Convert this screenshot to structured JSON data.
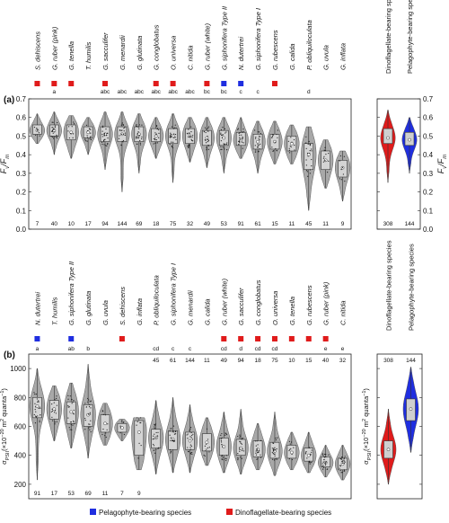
{
  "colors": {
    "pelagophyte": "#1f2ee0",
    "dinoflagellate": "#e01b1b",
    "violin": "#a8a8a8",
    "box": "#bdbdbd"
  },
  "legend": {
    "items": [
      {
        "label": "Pelagophyte-bearing species",
        "color": "#1f2ee0"
      },
      {
        "label": "Dinoflagellate-bearing species",
        "color": "#e01b1b"
      }
    ]
  },
  "chart_data": [
    {
      "type": "violin",
      "panel_label": "(a)",
      "ylabel": "Fv/Fm",
      "ylabel_main": "F",
      "ylabel_sub1": "v",
      "ylabel_slash": "/",
      "ylabel_sub2": "m",
      "ylim": [
        0.0,
        0.7
      ],
      "yticks": [
        "0.0",
        "0.1",
        "0.2",
        "0.3",
        "0.4",
        "0.5",
        "0.6",
        "0.7"
      ],
      "species": [
        {
          "name": "S. dehiscens",
          "symbiont": "dinoflagellate",
          "letter": "",
          "n": "7",
          "median": 0.53,
          "q1": 0.51,
          "q3": 0.56,
          "min": 0.46,
          "max": 0.62
        },
        {
          "name": "G. ruber (pink)",
          "symbiont": "dinoflagellate",
          "letter": "a",
          "n": "40",
          "median": 0.53,
          "q1": 0.5,
          "q3": 0.56,
          "min": 0.4,
          "max": 0.63
        },
        {
          "name": "G. tenella",
          "symbiont": "dinoflagellate",
          "letter": "",
          "n": "10",
          "median": 0.52,
          "q1": 0.48,
          "q3": 0.56,
          "min": 0.38,
          "max": 0.61
        },
        {
          "name": "T. humilis",
          "symbiont": "none",
          "letter": "",
          "n": "17",
          "median": 0.52,
          "q1": 0.49,
          "q3": 0.55,
          "min": 0.4,
          "max": 0.6
        },
        {
          "name": "G. sacculifer",
          "symbiont": "dinoflagellate",
          "letter": "abc",
          "n": "94",
          "median": 0.51,
          "q1": 0.47,
          "q3": 0.55,
          "min": 0.32,
          "max": 0.63
        },
        {
          "name": "G. menardii",
          "symbiont": "none",
          "letter": "abc",
          "n": "144",
          "median": 0.51,
          "q1": 0.47,
          "q3": 0.55,
          "min": 0.2,
          "max": 0.63
        },
        {
          "name": "G. glutinata",
          "symbiont": "none",
          "letter": "abc",
          "n": "69",
          "median": 0.51,
          "q1": 0.47,
          "q3": 0.55,
          "min": 0.3,
          "max": 0.62
        },
        {
          "name": "G. conglobatus",
          "symbiont": "dinoflagellate",
          "letter": "abc",
          "n": "18",
          "median": 0.5,
          "q1": 0.47,
          "q3": 0.54,
          "min": 0.38,
          "max": 0.6
        },
        {
          "name": "O. universa",
          "symbiont": "dinoflagellate",
          "letter": "abc",
          "n": "75",
          "median": 0.5,
          "q1": 0.46,
          "q3": 0.54,
          "min": 0.25,
          "max": 0.62
        },
        {
          "name": "C. nitida",
          "symbiont": "none",
          "letter": "abc",
          "n": "32",
          "median": 0.5,
          "q1": 0.46,
          "q3": 0.54,
          "min": 0.36,
          "max": 0.6
        },
        {
          "name": "G. ruber (white)",
          "symbiont": "dinoflagellate",
          "letter": "bc",
          "n": "49",
          "median": 0.49,
          "q1": 0.45,
          "q3": 0.53,
          "min": 0.33,
          "max": 0.6
        },
        {
          "name": "G. siphonifera Type II",
          "symbiont": "pelagophyte",
          "letter": "bc",
          "n": "53",
          "median": 0.49,
          "q1": 0.45,
          "q3": 0.53,
          "min": 0.3,
          "max": 0.6
        },
        {
          "name": "N. dutertrei",
          "symbiont": "pelagophyte",
          "letter": "c",
          "n": "91",
          "median": 0.48,
          "q1": 0.45,
          "q3": 0.52,
          "min": 0.38,
          "max": 0.6
        },
        {
          "name": "G. siphonifera Type I",
          "symbiont": "none",
          "letter": "c",
          "n": "61",
          "median": 0.47,
          "q1": 0.43,
          "q3": 0.51,
          "min": 0.3,
          "max": 0.58
        },
        {
          "name": "G. rubescens",
          "symbiont": "dinoflagellate",
          "letter": "",
          "n": "15",
          "median": 0.47,
          "q1": 0.43,
          "q3": 0.51,
          "min": 0.35,
          "max": 0.58
        },
        {
          "name": "G. calida",
          "symbiont": "none",
          "letter": "",
          "n": "11",
          "median": 0.46,
          "q1": 0.42,
          "q3": 0.5,
          "min": 0.35,
          "max": 0.56
        },
        {
          "name": "P. obliquiloculata",
          "symbiont": "none",
          "letter": "d",
          "n": "45",
          "median": 0.4,
          "q1": 0.32,
          "q3": 0.46,
          "min": 0.1,
          "max": 0.55
        },
        {
          "name": "G. uvula",
          "symbiont": "none",
          "letter": "",
          "n": "11",
          "median": 0.37,
          "q1": 0.32,
          "q3": 0.42,
          "min": 0.22,
          "max": 0.48
        },
        {
          "name": "G. inflata",
          "symbiont": "none",
          "letter": "",
          "n": "9",
          "median": 0.33,
          "q1": 0.28,
          "q3": 0.37,
          "min": 0.15,
          "max": 0.42
        }
      ],
      "groups": [
        {
          "name": "Dinoflagellate-bearing species",
          "color": "#e01b1b",
          "n": "308",
          "median": 0.49,
          "q1": 0.46,
          "q3": 0.54,
          "min": 0.25,
          "max": 0.64
        },
        {
          "name": "Pelagophyte-bearing species",
          "color": "#1f2ee0",
          "n": "144",
          "median": 0.48,
          "q1": 0.45,
          "q3": 0.52,
          "min": 0.3,
          "max": 0.6
        }
      ]
    },
    {
      "type": "violin",
      "panel_label": "(b)",
      "ylabel": "σPSII (×10⁻²⁰ m² quanta⁻¹)",
      "ylabel_main": "σ",
      "ylabel_sub": "PSII",
      "ylabel_unit": "(×10",
      "ylabel_sup": "−20",
      "ylabel_unit2": " m",
      "ylabel_sup2": "2",
      "ylabel_unit3": " quanta",
      "ylabel_sup3": "−1",
      "ylabel_close": ")",
      "ylim": [
        100,
        1100
      ],
      "yticks": [
        "200",
        "400",
        "600",
        "800",
        "1000"
      ],
      "species": [
        {
          "name": "N. dutertrei",
          "symbiont": "pelagophyte",
          "letter": "a",
          "n": "91",
          "n_pos": "bottom",
          "median": 740,
          "q1": 660,
          "q3": 800,
          "min": 230,
          "max": 1000
        },
        {
          "name": "T. humilis",
          "symbiont": "none",
          "letter": "",
          "n": "17",
          "n_pos": "bottom",
          "median": 720,
          "q1": 650,
          "q3": 780,
          "min": 500,
          "max": 880
        },
        {
          "name": "G. siphonifera Type II",
          "symbiont": "pelagophyte",
          "letter": "ab",
          "n": "53",
          "n_pos": "bottom",
          "median": 700,
          "q1": 620,
          "q3": 770,
          "min": 450,
          "max": 900
        },
        {
          "name": "G. glutinata",
          "symbiont": "none",
          "letter": "b",
          "n": "69",
          "n_pos": "bottom",
          "median": 680,
          "q1": 600,
          "q3": 750,
          "min": 380,
          "max": 1030
        },
        {
          "name": "G. uvula",
          "symbiont": "none",
          "letter": "",
          "n": "11",
          "n_pos": "bottom",
          "median": 620,
          "q1": 560,
          "q3": 680,
          "min": 470,
          "max": 760
        },
        {
          "name": "S. dehiscens",
          "symbiont": "dinoflagellate",
          "letter": "",
          "n": "7",
          "n_pos": "bottom",
          "median": 590,
          "q1": 560,
          "q3": 620,
          "min": 500,
          "max": 650
        },
        {
          "name": "G. inflata",
          "symbiont": "none",
          "letter": "",
          "n": "9",
          "n_pos": "bottom",
          "median": 560,
          "q1": 400,
          "q3": 640,
          "min": 300,
          "max": 660
        },
        {
          "name": "P. obliquiloculata",
          "symbiont": "none",
          "letter": "cd",
          "n": "45",
          "n_pos": "top",
          "median": 520,
          "q1": 450,
          "q3": 580,
          "min": 270,
          "max": 780
        },
        {
          "name": "G. siphonifera Type I",
          "symbiont": "none",
          "letter": "c",
          "n": "61",
          "n_pos": "top",
          "median": 510,
          "q1": 440,
          "q3": 570,
          "min": 280,
          "max": 800
        },
        {
          "name": "G. menardii",
          "symbiont": "none",
          "letter": "c",
          "n": "144",
          "n_pos": "top",
          "median": 500,
          "q1": 440,
          "q3": 560,
          "min": 280,
          "max": 750
        },
        {
          "name": "G. calida",
          "symbiont": "none",
          "letter": "",
          "n": "11",
          "n_pos": "top",
          "median": 490,
          "q1": 430,
          "q3": 550,
          "min": 330,
          "max": 660
        },
        {
          "name": "G. ruber (white)",
          "symbiont": "dinoflagellate",
          "letter": "cd",
          "n": "49",
          "n_pos": "top",
          "median": 460,
          "q1": 400,
          "q3": 520,
          "min": 280,
          "max": 700
        },
        {
          "name": "G. sacculifer",
          "symbiont": "dinoflagellate",
          "letter": "d",
          "n": "94",
          "n_pos": "top",
          "median": 450,
          "q1": 400,
          "q3": 510,
          "min": 270,
          "max": 720
        },
        {
          "name": "G. conglobatus",
          "symbiont": "dinoflagellate",
          "letter": "cd",
          "n": "18",
          "n_pos": "top",
          "median": 440,
          "q1": 390,
          "q3": 500,
          "min": 300,
          "max": 620
        },
        {
          "name": "O. universa",
          "symbiont": "dinoflagellate",
          "letter": "cd",
          "n": "75",
          "n_pos": "top",
          "median": 430,
          "q1": 380,
          "q3": 490,
          "min": 260,
          "max": 700
        },
        {
          "name": "G. tenella",
          "symbiont": "dinoflagellate",
          "letter": "",
          "n": "10",
          "n_pos": "top",
          "median": 420,
          "q1": 380,
          "q3": 470,
          "min": 300,
          "max": 560
        },
        {
          "name": "G. rubescens",
          "symbiont": "dinoflagellate",
          "letter": "",
          "n": "15",
          "n_pos": "top",
          "median": 400,
          "q1": 360,
          "q3": 450,
          "min": 280,
          "max": 560
        },
        {
          "name": "G. ruber (pink)",
          "symbiont": "dinoflagellate",
          "letter": "e",
          "n": "40",
          "n_pos": "top",
          "median": 350,
          "q1": 320,
          "q3": 390,
          "min": 250,
          "max": 470
        },
        {
          "name": "C. nitida",
          "symbiont": "none",
          "letter": "e",
          "n": "32",
          "n_pos": "top",
          "median": 340,
          "q1": 300,
          "q3": 380,
          "min": 230,
          "max": 470
        }
      ],
      "groups": [
        {
          "name": "Dinoflagellate-bearing species",
          "color": "#e01b1b",
          "n": "308",
          "median": 440,
          "q1": 380,
          "q3": 500,
          "min": 200,
          "max": 720
        },
        {
          "name": "Pelagophyte-bearing species",
          "color": "#1f2ee0",
          "n": "144",
          "median": 720,
          "q1": 640,
          "q3": 790,
          "min": 420,
          "max": 1010
        }
      ]
    }
  ]
}
